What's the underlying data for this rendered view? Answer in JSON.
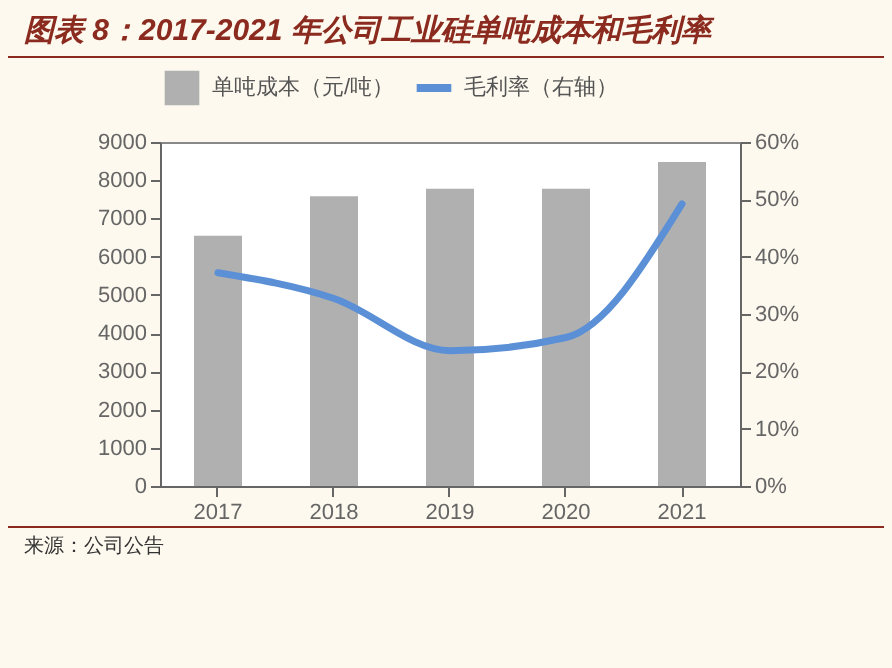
{
  "chart_data": {
    "type": "bar",
    "title": "图表 8：2017-2021 年公司工业硅单吨成本和毛利率",
    "categories": [
      "2017",
      "2018",
      "2019",
      "2020",
      "2021"
    ],
    "series": [
      {
        "name": "单吨成本（元/吨）",
        "color": "#b0b0b0",
        "values": [
          6550,
          7580,
          7780,
          7780,
          8480
        ]
      },
      {
        "name": "毛利率（右轴）",
        "type": "line",
        "axis": "y2",
        "color": "#5b8fd6",
        "values": [
          37.2,
          32.7,
          23.6,
          25.9,
          49.2
        ]
      }
    ],
    "ylim": [
      0,
      9000
    ],
    "yticks": [
      0,
      1000,
      2000,
      3000,
      4000,
      5000,
      6000,
      7000,
      8000,
      9000
    ],
    "y2lim": [
      0,
      60
    ],
    "y2ticks": [
      {
        "value": 0,
        "label": "0%"
      },
      {
        "value": 10,
        "label": "10%"
      },
      {
        "value": 20,
        "label": "20%"
      },
      {
        "value": 30,
        "label": "30%"
      },
      {
        "value": 40,
        "label": "40%"
      },
      {
        "value": 50,
        "label": "50%"
      },
      {
        "value": 60,
        "label": "60%"
      }
    ],
    "legend": "top",
    "grid": false,
    "annotations": [
      "来源：公司公告"
    ]
  }
}
